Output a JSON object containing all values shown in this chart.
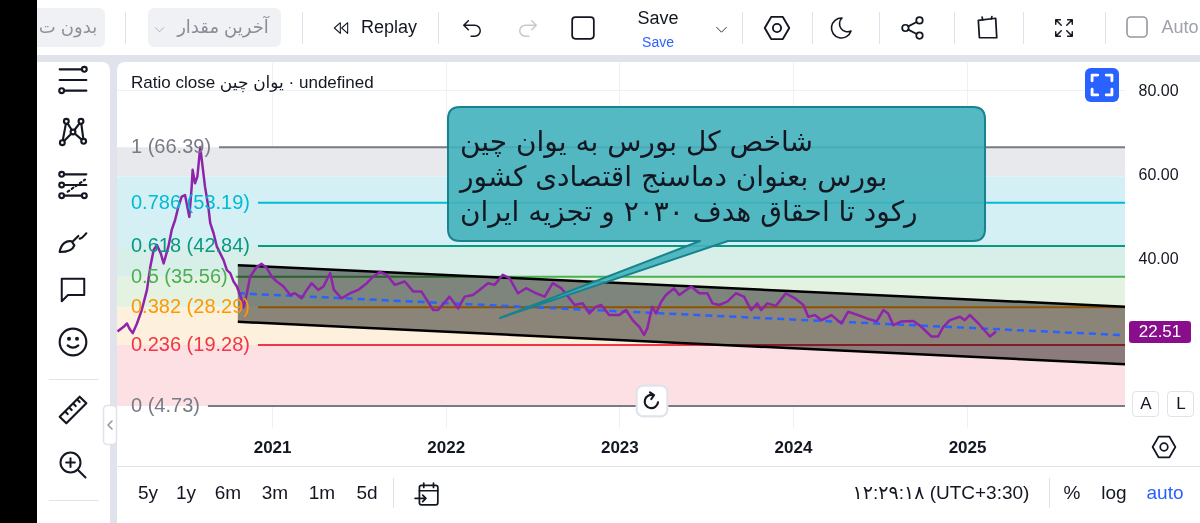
{
  "chart_data": {
    "type": "line",
    "title": "Ratio close یوان چین · undefined",
    "xlim": [
      "2020-02-10",
      "2025-11-29"
    ],
    "xticks": [
      "2021",
      "2022",
      "2023",
      "2024",
      "2025"
    ],
    "ylim": [
      -0.5,
      86.7
    ],
    "yticks": [
      {
        "value": 20,
        "label": null
      },
      {
        "value": 40,
        "label": "40.00"
      },
      {
        "value": 60,
        "label": "60.00"
      },
      {
        "value": 80,
        "label": "80.00"
      }
    ],
    "grid": true,
    "series": [
      {
        "color": "#000000",
        "x": [
          "2020-10-21",
          "2025-11-29"
        ],
        "values": [
          38.3,
          28.4
        ],
        "lower": [
          24.8,
          14.7
        ],
        "upper": [
          38.3,
          28.4
        ]
      },
      {
        "color": "#000000",
        "x": [
          "2020-10-21",
          "2025-11-29"
        ],
        "values": [
          24.8,
          14.7
        ]
      },
      {
        "color": "#2962ff",
        "line_style": "dashed",
        "x": [
          "2020-10-21",
          "2025-11-29"
        ],
        "values": [
          31.6,
          21.6
        ]
      },
      {
        "color": "#8e24aa",
        "x": [
          "2020-02-11",
          "2020-02-24",
          "2020-03-02",
          "2020-03-07",
          "2020-03-14",
          "2020-03-23",
          "2020-04-02",
          "2020-04-13",
          "2020-04-20",
          "2020-04-27",
          "2020-05-04",
          "2020-05-12",
          "2020-05-18",
          "2020-05-28",
          "2020-06-04",
          "2020-06-11",
          "2020-06-18",
          "2020-06-25",
          "2020-07-02",
          "2020-07-11",
          "2020-07-16",
          "2020-07-18",
          "2020-07-23",
          "2020-07-28",
          "2020-08-03",
          "2020-08-08",
          "2020-08-13",
          "2020-08-20",
          "2020-08-24",
          "2020-08-31",
          "2020-09-07",
          "2020-09-14",
          "2020-09-21",
          "2020-09-28",
          "2020-10-05",
          "2020-10-12",
          "2020-10-19",
          "2020-10-27",
          "2020-11-02",
          "2020-11-09",
          "2020-11-16",
          "2020-11-30",
          "2020-12-10",
          "2020-12-21",
          "2020-12-31",
          "2021-01-11",
          "2021-01-25",
          "2021-02-08",
          "2021-02-18",
          "2021-03-04",
          "2021-03-15",
          "2021-03-25",
          "2021-04-08",
          "2021-04-19",
          "2021-05-03",
          "2021-05-11",
          "2021-05-27",
          "2021-06-14",
          "2021-07-01",
          "2021-07-19",
          "2021-08-02",
          "2021-08-16",
          "2021-08-30",
          "2021-09-16",
          "2021-10-07",
          "2021-10-25",
          "2021-11-11",
          "2021-12-06",
          "2021-12-16",
          "2022-01-09",
          "2022-01-27",
          "2022-02-10",
          "2022-02-27",
          "2022-03-13",
          "2022-03-31",
          "2022-04-14",
          "2022-05-01",
          "2022-05-15",
          "2022-06-02",
          "2022-06-19",
          "2022-07-10",
          "2022-07-28",
          "2022-08-14",
          "2022-09-01",
          "2022-09-18",
          "2022-09-29",
          "2022-10-16",
          "2022-10-30",
          "2022-11-13",
          "2022-11-24",
          "2022-12-11",
          "2023-01-01",
          "2023-01-15",
          "2023-01-29",
          "2023-02-12",
          "2023-02-22",
          "2023-03-01",
          "2023-03-11",
          "2023-03-19",
          "2023-03-30",
          "2023-04-09",
          "2023-04-26",
          "2023-05-07",
          "2023-06-01",
          "2023-06-18",
          "2023-07-05",
          "2023-07-16",
          "2023-07-30",
          "2023-08-16",
          "2023-09-03",
          "2023-09-20",
          "2023-10-05",
          "2023-10-18",
          "2023-10-26",
          "2023-11-08",
          "2023-11-26",
          "2023-12-17",
          "2024-01-05",
          "2024-01-23",
          "2024-02-02",
          "2024-02-16",
          "2024-03-01",
          "2024-03-22",
          "2024-04-12",
          "2024-04-26",
          "2024-05-17",
          "2024-06-04",
          "2024-06-25",
          "2024-07-09",
          "2024-07-19",
          "2024-07-30",
          "2024-08-16",
          "2024-09-10",
          "2024-09-27",
          "2024-10-18",
          "2024-11-01",
          "2024-11-12",
          "2024-11-26",
          "2024-12-17",
          "2024-12-27",
          "2025-01-07",
          "2025-01-25",
          "2025-02-18",
          "2025-03-03"
        ],
        "values": [
          22.5,
          23.6,
          24.4,
          23.2,
          22.1,
          24.4,
          27.6,
          32.4,
          37.9,
          41.9,
          43.1,
          41.1,
          38.7,
          42.7,
          46.7,
          49.0,
          52.2,
          54.6,
          55.0,
          49.8,
          57.0,
          61.0,
          57.8,
          59.4,
          66.4,
          61.7,
          57.0,
          52.2,
          48.3,
          45.9,
          42.7,
          41.1,
          39.5,
          37.1,
          36.4,
          34.4,
          33.2,
          30.8,
          28.2,
          31.6,
          35.6,
          37.9,
          38.6,
          37.6,
          35.6,
          34.4,
          33.2,
          31.2,
          31.6,
          30.4,
          32.4,
          34.0,
          32.4,
          33.2,
          36.4,
          32.4,
          30.4,
          31.6,
          32.4,
          34.0,
          35.6,
          36.7,
          36.0,
          33.6,
          34.4,
          32.0,
          32.0,
          27.6,
          27.6,
          30.8,
          28.0,
          30.8,
          31.2,
          32.4,
          34.0,
          33.6,
          36.0,
          35.2,
          31.6,
          32.8,
          31.6,
          30.8,
          34.0,
          32.8,
          30.4,
          28.8,
          29.2,
          26.8,
          28.4,
          28.8,
          26.4,
          26.4,
          27.6,
          25.2,
          23.6,
          21.7,
          23.3,
          28.4,
          26.8,
          29.6,
          31.2,
          32.8,
          31.2,
          33.2,
          31.6,
          31.6,
          29.2,
          28.8,
          29.6,
          31.6,
          30.8,
          27.6,
          29.2,
          27.6,
          29.2,
          28.6,
          31.6,
          30.4,
          28.8,
          26.0,
          26.4,
          25.2,
          26.4,
          24.4,
          27.2,
          26.4,
          25.6,
          24.9,
          27.6,
          26.8,
          24.0,
          24.9,
          25.0,
          23.6,
          21.3,
          21.3,
          23.6,
          25.2,
          26.0,
          25.2,
          26.4,
          24.4,
          21.3,
          22.51
        ]
      }
    ],
    "ref_lines": [
      {
        "axis": "y",
        "value": 66.39,
        "label": "1 (66.39)",
        "color": "#787b86"
      },
      {
        "axis": "y",
        "value": 53.19,
        "label": "0.786 (53.19)",
        "color": "#00bcd4"
      },
      {
        "axis": "y",
        "value": 42.84,
        "label": "0.618 (42.84)",
        "color": "#089981"
      },
      {
        "axis": "y",
        "value": 35.56,
        "label": "0.5 (35.56)",
        "color": "#4caf50"
      },
      {
        "axis": "y",
        "value": 28.29,
        "label": "0.382 (28.29)",
        "color": "#ff9800"
      },
      {
        "axis": "y",
        "value": 19.28,
        "label": "0.236 (19.28)",
        "color": "#f23645"
      },
      {
        "axis": "y",
        "value": 4.73,
        "label": "0 (4.73)",
        "color": "#787b86"
      }
    ],
    "bands": [
      {
        "axis": "y",
        "from": 59.4,
        "to": 66.39,
        "color": "#e8e9ed"
      },
      {
        "axis": "y",
        "from": 42.84,
        "to": 59.4,
        "color": "#d4f0f5"
      },
      {
        "axis": "y",
        "from": 35.56,
        "to": 42.84,
        "color": "#d8eee9"
      },
      {
        "axis": "y",
        "from": 28.29,
        "to": 35.56,
        "color": "#e4f2e2"
      },
      {
        "axis": "y",
        "from": 19.28,
        "to": 28.29,
        "color": "#fdf0dc"
      },
      {
        "axis": "y",
        "from": 4.73,
        "to": 19.28,
        "color": "#fde0e3"
      }
    ],
    "annotations": [
      "شاخص کل بورس به یوان چین\nبورس بعنوان دماسنج اقتصادی کشور\nرکود تا احقاق هدف ۲۰۳۰ و تجزیه ایران",
      "بدون ت",
      "آخرین مقدار",
      "Replay",
      "Save",
      "Save",
      "Auto",
      "5y",
      "1y",
      "6m",
      "3m",
      "1m",
      "5d",
      "۱۲:۲۹:۱۸ (UTC+3:30)",
      "%",
      "log",
      "auto",
      "A",
      "L",
      "22.51"
    ]
  }
}
